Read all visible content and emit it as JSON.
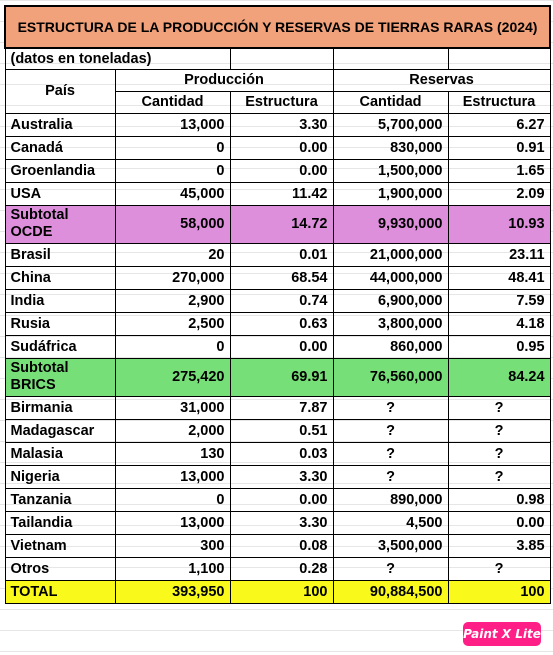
{
  "title": "ESTRUCTURA DE LA PRODUCCIÓN Y RESERVAS DE TIERRAS RARAS (2024)",
  "note": "(datos en toneladas)",
  "headers": {
    "country": "País",
    "production": "Producción",
    "reserves": "Reservas",
    "quantity": "Cantidad",
    "structure": "Estructura"
  },
  "rows": [
    {
      "pais": "Australia",
      "p_cant": "13,000",
      "p_est": "3.30",
      "r_cant": "5,700,000",
      "r_est": "6.27"
    },
    {
      "pais": "Canadá",
      "p_cant": "0",
      "p_est": "0.00",
      "r_cant": "830,000",
      "r_est": "0.91"
    },
    {
      "pais": "Groenlandia",
      "p_cant": "0",
      "p_est": "0.00",
      "r_cant": "1,500,000",
      "r_est": "1.65"
    },
    {
      "pais": "USA",
      "p_cant": "45,000",
      "p_est": "11.42",
      "r_cant": "1,900,000",
      "r_est": "2.09"
    },
    {
      "pais": "Subtotal OCDE",
      "p_cant": "58,000",
      "p_est": "14.72",
      "r_cant": "9,930,000",
      "r_est": "10.93"
    },
    {
      "pais": "Brasil",
      "p_cant": "20",
      "p_est": "0.01",
      "r_cant": "21,000,000",
      "r_est": "23.11"
    },
    {
      "pais": "China",
      "p_cant": "270,000",
      "p_est": "68.54",
      "r_cant": "44,000,000",
      "r_est": "48.41"
    },
    {
      "pais": "India",
      "p_cant": "2,900",
      "p_est": "0.74",
      "r_cant": "6,900,000",
      "r_est": "7.59"
    },
    {
      "pais": "Rusia",
      "p_cant": "2,500",
      "p_est": "0.63",
      "r_cant": "3,800,000",
      "r_est": "4.18"
    },
    {
      "pais": "Sudáfrica",
      "p_cant": "0",
      "p_est": "0.00",
      "r_cant": "860,000",
      "r_est": "0.95"
    },
    {
      "pais": "Subtotal BRICS",
      "p_cant": "275,420",
      "p_est": "69.91",
      "r_cant": "76,560,000",
      "r_est": "84.24"
    },
    {
      "pais": "Birmania",
      "p_cant": "31,000",
      "p_est": "7.87",
      "r_cant": "?",
      "r_est": "?"
    },
    {
      "pais": "Madagascar",
      "p_cant": "2,000",
      "p_est": "0.51",
      "r_cant": "?",
      "r_est": "?"
    },
    {
      "pais": "Malasia",
      "p_cant": "130",
      "p_est": "0.03",
      "r_cant": "?",
      "r_est": "?"
    },
    {
      "pais": "Nigeria",
      "p_cant": "13,000",
      "p_est": "3.30",
      "r_cant": "?",
      "r_est": "?"
    },
    {
      "pais": "Tanzania",
      "p_cant": "0",
      "p_est": "0.00",
      "r_cant": "890,000",
      "r_est": "0.98"
    },
    {
      "pais": "Tailandia",
      "p_cant": "13,000",
      "p_est": "3.30",
      "r_cant": "4,500",
      "r_est": "0.00"
    },
    {
      "pais": "Vietnam",
      "p_cant": "300",
      "p_est": "0.08",
      "r_cant": "3,500,000",
      "r_est": "3.85"
    },
    {
      "pais": "Otros",
      "p_cant": "1,100",
      "p_est": "0.28",
      "r_cant": "?",
      "r_est": "?"
    },
    {
      "pais": "TOTAL",
      "p_cant": "393,950",
      "p_est": "100",
      "r_cant": "90,884,500",
      "r_est": "100"
    }
  ],
  "watermark": "Paint X Lite",
  "colors": {
    "title_bg": "#f2a27a",
    "ocde_bg": "#dd8fdc",
    "brics_bg": "#77df77",
    "total_bg": "#f9fa1c",
    "badge_bg": "#ff1f86"
  }
}
